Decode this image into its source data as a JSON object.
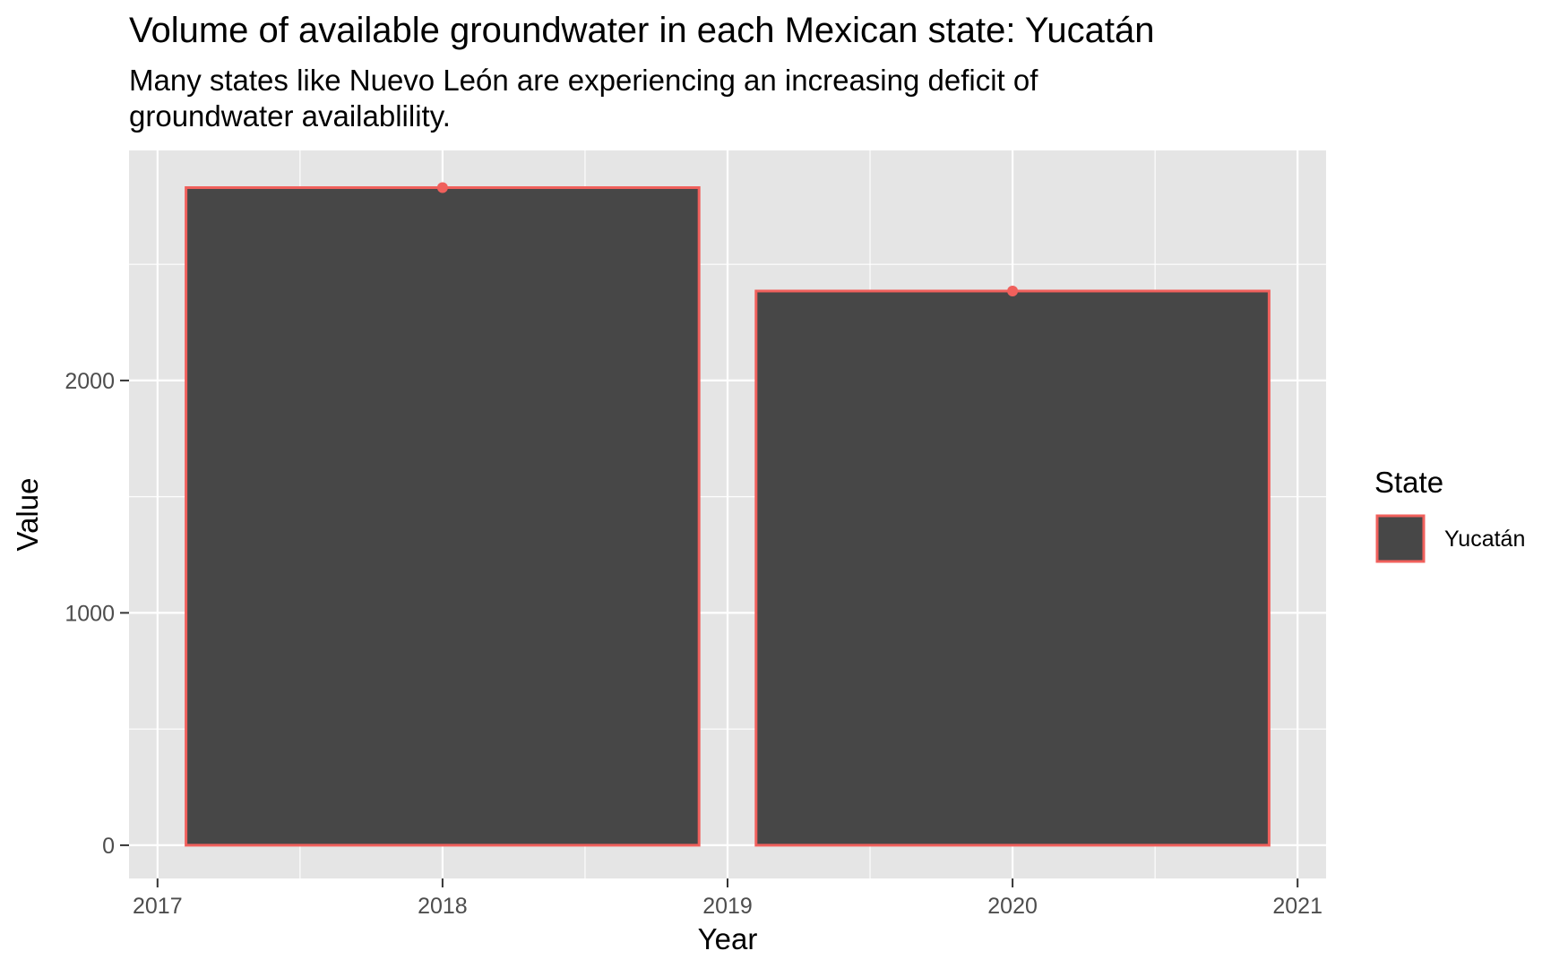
{
  "chart_data": {
    "type": "bar",
    "title": "Volume of available groundwater in each Mexican state: Yucatán",
    "subtitle": "Many states like Nuevo León are experiencing an increasing deficit of groundwater availablility.",
    "xlabel": "Year",
    "ylabel": "Value",
    "x": [
      2018,
      2020
    ],
    "values": [
      2830,
      2385
    ],
    "series": [
      {
        "name": "Yucatán",
        "x": [
          2018,
          2020
        ],
        "values": [
          2830,
          2385
        ]
      }
    ],
    "xlim": [
      2016.9,
      2021.1
    ],
    "ylim": [
      -143,
      2990
    ],
    "x_ticks": [
      2017,
      2018,
      2019,
      2020,
      2021
    ],
    "x_tick_labels": [
      "2017",
      "2018",
      "2019",
      "2020",
      "2021"
    ],
    "y_ticks": [
      0,
      1000,
      2000
    ],
    "y_tick_labels": [
      "0",
      "1000",
      "2000"
    ],
    "bar_width_years": 1.8,
    "legend": {
      "title": "State",
      "position": "right",
      "entries": [
        "Yucatán"
      ]
    },
    "grid": true,
    "colors": {
      "panel_background": "#e5e5e5",
      "grid_line": "#ffffff",
      "bar_fill": "#474747",
      "bar_outline": "#f0605c",
      "point": "#f0605c"
    }
  }
}
